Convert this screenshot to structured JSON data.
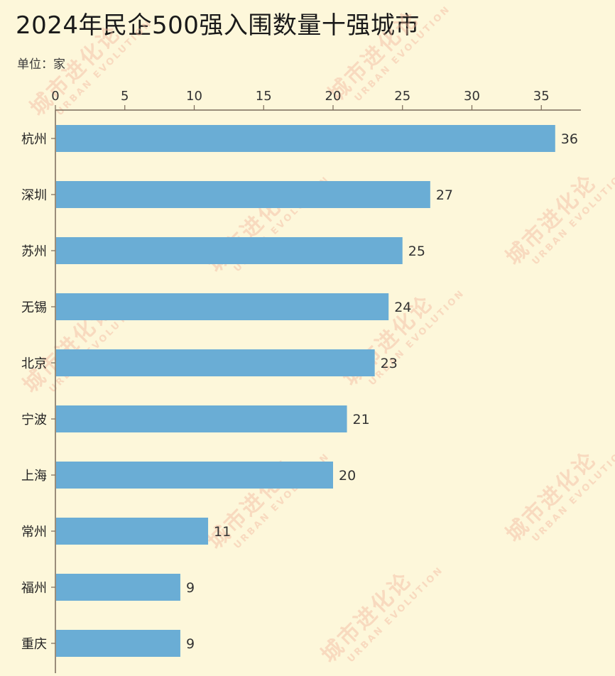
{
  "chart_data": {
    "type": "bar",
    "orientation": "horizontal",
    "title": "2024年民企500强入围数量十强城市",
    "unit_label": "单位：家",
    "categories": [
      "杭州",
      "深圳",
      "苏州",
      "无锡",
      "北京",
      "宁波",
      "上海",
      "常州",
      "福州",
      "重庆"
    ],
    "values": [
      36,
      27,
      25,
      24,
      23,
      21,
      20,
      11,
      9,
      9
    ],
    "xlim": [
      0,
      37.5
    ],
    "x_ticks": [
      0,
      5,
      10,
      15,
      20,
      25,
      30,
      35
    ],
    "x_axis_position": "top",
    "grid": false,
    "legend": "none",
    "data_labels": true
  },
  "colors": {
    "background": "#FDF7DA",
    "bar": "#6AADD5",
    "axis": "#7A6A5A",
    "text": "#1a1a1a",
    "watermark": "#F2B9A0"
  },
  "watermark": {
    "main": "城市进化论",
    "sub": "URBAN EVOLUTION"
  }
}
